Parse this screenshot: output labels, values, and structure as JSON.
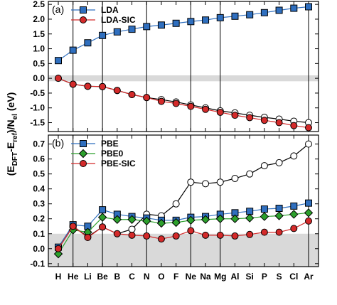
{
  "ylabel": [
    "(E",
    "DFT",
    "-E",
    "ref",
    ")/N",
    "el",
    " (eV)"
  ],
  "chart_data": [
    {
      "type": "line",
      "panel_label": "(a)",
      "ylim": [
        -1.8,
        2.6
      ],
      "yticks": [
        {
          "value": 2.5,
          "label": "2.5"
        },
        {
          "value": 2,
          "label": "2.0"
        },
        1.5,
        {
          "value": 1,
          "label": "1.0"
        },
        0.5,
        {
          "value": 0,
          "label": "0.0"
        },
        -0.5,
        {
          "value": -1,
          "label": "-1.0"
        },
        -1.5
      ],
      "band": [
        -0.1,
        0.1
      ],
      "band_color": "#d9d9d9",
      "vlines": [
        1,
        3,
        6,
        9,
        11,
        17
      ],
      "legend": "upper left",
      "series": [
        {
          "name": "LDA",
          "color": "#2f6fbf",
          "line_color": "#2f6fbf",
          "marker": "square",
          "values": [
            0.6,
            0.95,
            1.2,
            1.45,
            1.57,
            1.66,
            1.75,
            1.8,
            1.86,
            1.92,
            1.97,
            2.05,
            2.1,
            2.15,
            2.22,
            2.3,
            2.37,
            2.42
          ]
        },
        {
          "name": "LDA-SIC",
          "color": "#d42a2a",
          "line_color": "#d42a2a",
          "marker": "circle",
          "values": [
            0.0,
            -0.2,
            -0.27,
            -0.28,
            -0.41,
            -0.55,
            -0.65,
            -0.78,
            -0.85,
            -0.95,
            -1.05,
            -1.15,
            -1.25,
            -1.33,
            -1.42,
            -1.5,
            -1.6,
            -1.67
          ]
        },
        {
          "color": "#ffffff",
          "line_color": "#000000",
          "marker": "circle",
          "values": [
            0.0,
            -0.2,
            -0.27,
            -0.28,
            -0.41,
            -0.55,
            -0.65,
            -0.72,
            -0.8,
            -0.9,
            -1.0,
            -1.1,
            -1.17,
            -1.25,
            -1.32,
            -1.38,
            -1.45,
            -1.5
          ]
        }
      ]
    },
    {
      "type": "line",
      "panel_label": "(b)",
      "categories": [
        "H",
        "He",
        "Li",
        "Be",
        "B",
        "C",
        "N",
        "O",
        "F",
        "Ne",
        "Na",
        "Mg",
        "Al",
        "Si",
        "P",
        "S",
        "Cl",
        "Ar"
      ],
      "ylim": [
        -0.12,
        0.76
      ],
      "yticks": [
        0.7,
        0.6,
        0.5,
        0.4,
        0.3,
        0.2,
        0.1,
        {
          "value": 0,
          "label": "0.0"
        },
        -0.1
      ],
      "band": [
        -0.12,
        0.1
      ],
      "band_color": "#d9d9d9",
      "vlines": [
        1,
        3,
        6,
        9,
        11,
        17
      ],
      "legend": "upper left",
      "series": [
        {
          "name": "PBE",
          "color": "#2f6fbf",
          "line_color": "#2f6fbf",
          "marker": "square",
          "values": [
            0.01,
            0.16,
            0.15,
            0.26,
            0.23,
            0.215,
            0.205,
            0.19,
            0.19,
            0.21,
            0.215,
            0.23,
            0.24,
            0.25,
            0.265,
            0.27,
            0.285,
            0.305
          ]
        },
        {
          "name": "PBE0",
          "color": "#2ca02c",
          "line_color": "#2ca02c",
          "marker": "diamond",
          "values": [
            -0.035,
            0.125,
            0.11,
            0.21,
            0.195,
            0.195,
            0.185,
            0.17,
            0.175,
            0.19,
            0.195,
            0.2,
            0.2,
            0.205,
            0.215,
            0.22,
            0.23,
            0.24
          ]
        },
        {
          "name": "PBE-SIC",
          "color": "#d42a2a",
          "line_color": "#d42a2a",
          "marker": "circle",
          "values": [
            0.0,
            0.15,
            0.075,
            0.145,
            0.1,
            0.09,
            0.085,
            0.065,
            0.085,
            0.12,
            0.09,
            0.09,
            0.085,
            0.095,
            0.11,
            0.11,
            0.135,
            0.185
          ]
        },
        {
          "color": "#ffffff",
          "line_color": "#000000",
          "marker": "circle",
          "values": [
            0.0,
            0.15,
            0.08,
            0.145,
            0.1,
            0.13,
            0.23,
            0.22,
            0.3,
            0.445,
            0.435,
            0.445,
            0.47,
            0.5,
            0.555,
            0.575,
            0.62,
            0.7
          ]
        }
      ]
    }
  ]
}
